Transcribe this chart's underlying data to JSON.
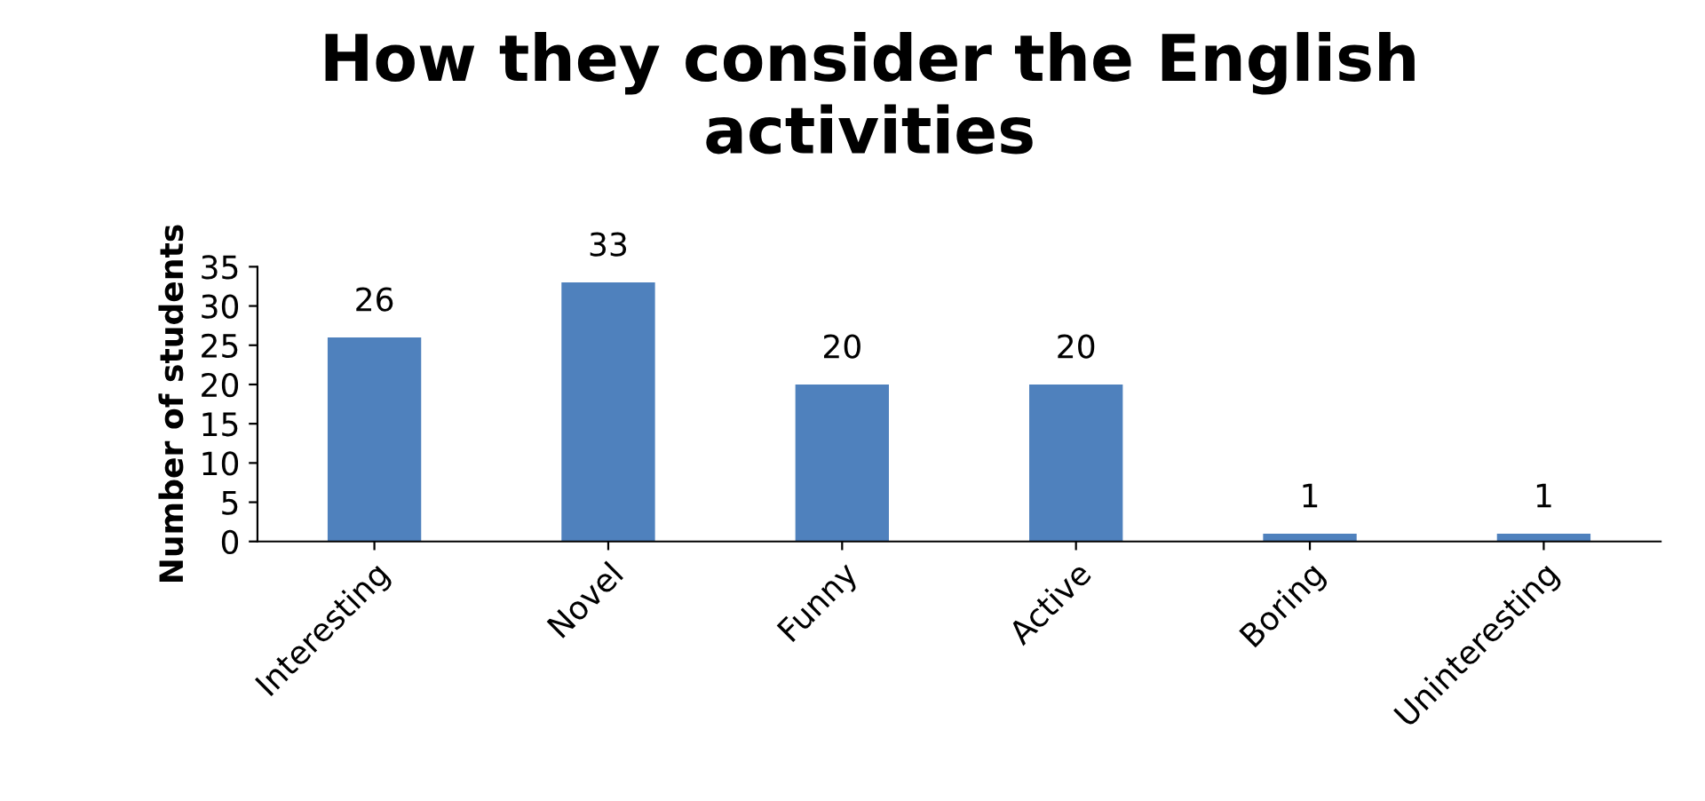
{
  "chart_data": {
    "type": "bar",
    "title": "How they consider the English\nactivities",
    "ylabel": "Number of students",
    "categories": [
      "Interesting",
      "Novel",
      "Funny",
      "Active",
      "Boring",
      "Uninteresting"
    ],
    "values": [
      26,
      33,
      20,
      20,
      1,
      1
    ],
    "color": "#4f81bd",
    "ylim": [
      0,
      35
    ],
    "yticks": [
      0,
      5,
      10,
      15,
      20,
      25,
      30,
      35
    ],
    "data_labels": true,
    "grid": false,
    "legend": false
  }
}
